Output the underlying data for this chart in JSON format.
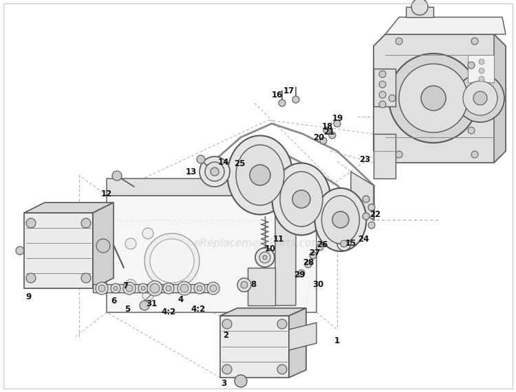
{
  "background_color": "#ffffff",
  "border_color": "#cccccc",
  "watermark_text": "eReplacementParts.com",
  "watermark_color": "#bbbbbb",
  "watermark_alpha": 0.45,
  "line_color": "#555555",
  "light_line": "#888888",
  "dash_color": "#aaaaaa",
  "part_label_color": "#111111",
  "part_label_size": 8.5,
  "fill_light": "#f2f2f2",
  "fill_mid": "#e0e0e0",
  "fill_dark": "#cccccc",
  "belt_color": "#888888",
  "belt_lw": 2.0,
  "pulley_face": "#e8e8e8",
  "pulley_edge": "#666666"
}
